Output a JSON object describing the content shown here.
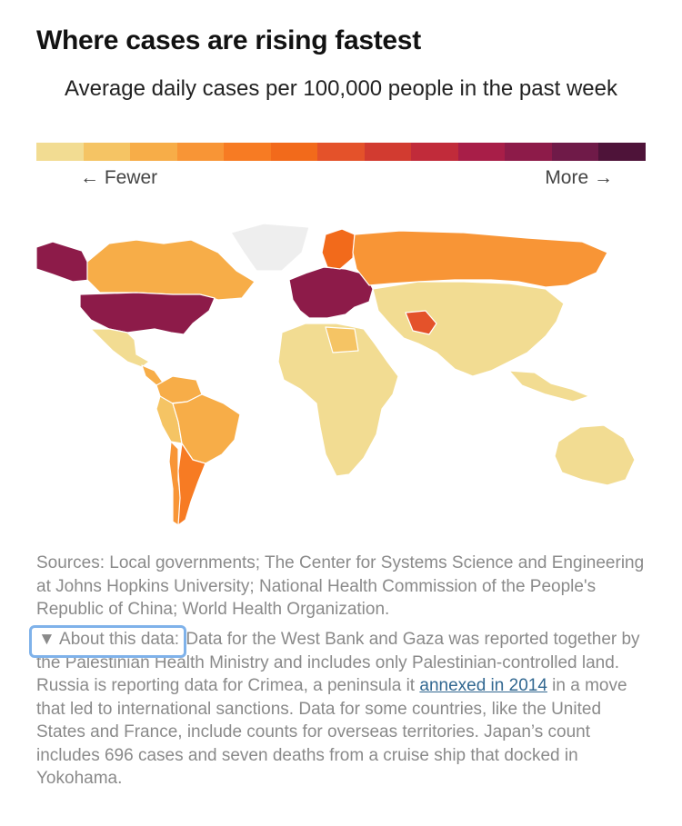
{
  "title": "Where cases are rising fastest",
  "subtitle": "Average daily cases per 100,000 people in the past week",
  "legend": {
    "left_label": "← Fewer",
    "right_label": "More →",
    "colors": [
      "#f2dc92",
      "#f5c464",
      "#f7ad48",
      "#f89536",
      "#f77b23",
      "#f26a1b",
      "#e4522a",
      "#d23b30",
      "#c12b3a",
      "#a81e48",
      "#8d1b49",
      "#6f1a48",
      "#4e1339"
    ]
  },
  "map_regions": [
    {
      "name": "Alaska",
      "color": "#8d1b49"
    },
    {
      "name": "Canada",
      "color": "#f7ad48"
    },
    {
      "name": "Greenland",
      "color": "#eeeeee"
    },
    {
      "name": "United States",
      "color": "#8d1b49"
    },
    {
      "name": "Mexico",
      "color": "#f2dc92"
    },
    {
      "name": "Central America",
      "color": "#f7ad48"
    },
    {
      "name": "Colombia / Venezuela",
      "color": "#f7ad48"
    },
    {
      "name": "Brazil",
      "color": "#f7ad48"
    },
    {
      "name": "Peru",
      "color": "#f5c464"
    },
    {
      "name": "Argentina",
      "color": "#f77b23"
    },
    {
      "name": "Chile",
      "color": "#f89536"
    },
    {
      "name": "Europe",
      "color": "#8d1b49"
    },
    {
      "name": "Scandinavia",
      "color": "#f26a1b"
    },
    {
      "name": "Russia",
      "color": "#f89536"
    },
    {
      "name": "Iran",
      "color": "#e4522a"
    },
    {
      "name": "Africa",
      "color": "#f2dc92"
    },
    {
      "name": "Libya",
      "color": "#f5c464"
    },
    {
      "name": "Asia",
      "color": "#f2dc92"
    },
    {
      "name": "Australia",
      "color": "#f2dc92"
    }
  ],
  "sources": "Sources: Local governments; The Center for Systems Science and Engineering at Johns Hopkins University; National Health Commission of the People's Republic of China; World Health Organization.",
  "about": {
    "toggle_label": "▼ About this data:",
    "text_before_link": " Data for the West Bank and Gaza was reported together by the Palestinian Health Ministry and includes only Palestinian-controlled land. Russia is reporting data for Crimea, a peninsula it ",
    "link_text": "annexed in 2014",
    "text_after_link": " in a move that led to international sanctions. Data for some countries, like the United States and France, include counts for overseas territories. Japan’s count includes 696 cases and seven deaths from a cruise ship that docked in Yokohama."
  }
}
